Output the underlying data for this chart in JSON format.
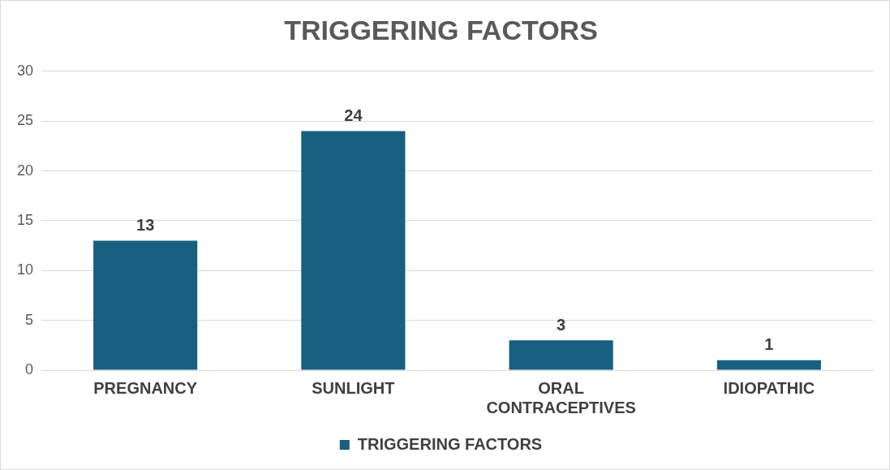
{
  "chart_data": {
    "type": "bar",
    "title": "TRIGGERING FACTORS",
    "categories": [
      "PREGNANCY",
      "SUNLIGHT",
      "ORAL CONTRACEPTIVES",
      "IDIOPATHIC"
    ],
    "series": [
      {
        "name": "TRIGGERING FACTORS",
        "color": "#17607f",
        "values": [
          13,
          24,
          3,
          1
        ]
      }
    ],
    "ylim": [
      0,
      30
    ],
    "yticks": [
      0,
      5,
      10,
      15,
      20,
      25,
      30
    ],
    "grid": "y",
    "legend": "bottom",
    "data_labels": true
  }
}
